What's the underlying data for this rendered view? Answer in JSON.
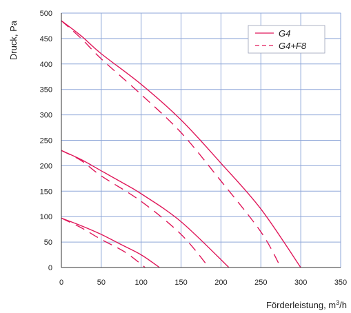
{
  "chart_data": {
    "type": "line",
    "ylabel": "Druck, Pa",
    "xlabel": "Förderleistung, m³/h",
    "xlabel_main": "Förderleistung, m",
    "xlabel_sup": "3",
    "xlabel_tail": "/h",
    "xlim": [
      0,
      350
    ],
    "ylim": [
      0,
      500
    ],
    "xticks": [
      0,
      50,
      100,
      150,
      200,
      250,
      300,
      350
    ],
    "yticks": [
      0,
      50,
      100,
      150,
      200,
      250,
      300,
      350,
      400,
      450,
      500
    ],
    "grid": true,
    "legend_position": "top-right",
    "legend": [
      "G4",
      "G4+F8"
    ],
    "colors": {
      "line": "#e0185a",
      "grid": "#8ea6d8",
      "axis": "#333333",
      "legend_border": "#9aa0b8"
    },
    "series": [
      {
        "name": "G4",
        "style": "solid",
        "points": [
          [
            0,
            485
          ],
          [
            25,
            455
          ],
          [
            50,
            420
          ],
          [
            100,
            360
          ],
          [
            150,
            290
          ],
          [
            200,
            205
          ],
          [
            250,
            115
          ],
          [
            300,
            0
          ]
        ]
      },
      {
        "name": "G4+F8",
        "style": "dashed",
        "points": [
          [
            0,
            485
          ],
          [
            25,
            450
          ],
          [
            50,
            410
          ],
          [
            100,
            340
          ],
          [
            150,
            265
          ],
          [
            200,
            170
          ],
          [
            250,
            70
          ],
          [
            275,
            0
          ]
        ]
      },
      {
        "name": "G4",
        "style": "solid",
        "points": [
          [
            0,
            230
          ],
          [
            25,
            212
          ],
          [
            50,
            190
          ],
          [
            75,
            168
          ],
          [
            100,
            145
          ],
          [
            150,
            90
          ],
          [
            210,
            0
          ]
        ]
      },
      {
        "name": "G4+F8",
        "style": "dashed",
        "points": [
          [
            0,
            230
          ],
          [
            25,
            210
          ],
          [
            50,
            180
          ],
          [
            100,
            130
          ],
          [
            150,
            65
          ],
          [
            185,
            0
          ]
        ]
      },
      {
        "name": "G4",
        "style": "solid",
        "points": [
          [
            0,
            97
          ],
          [
            25,
            82
          ],
          [
            50,
            65
          ],
          [
            75,
            45
          ],
          [
            100,
            25
          ],
          [
            123,
            0
          ]
        ]
      },
      {
        "name": "G4+F8",
        "style": "dashed",
        "points": [
          [
            0,
            97
          ],
          [
            25,
            78
          ],
          [
            50,
            55
          ],
          [
            80,
            30
          ],
          [
            105,
            0
          ]
        ]
      }
    ]
  }
}
